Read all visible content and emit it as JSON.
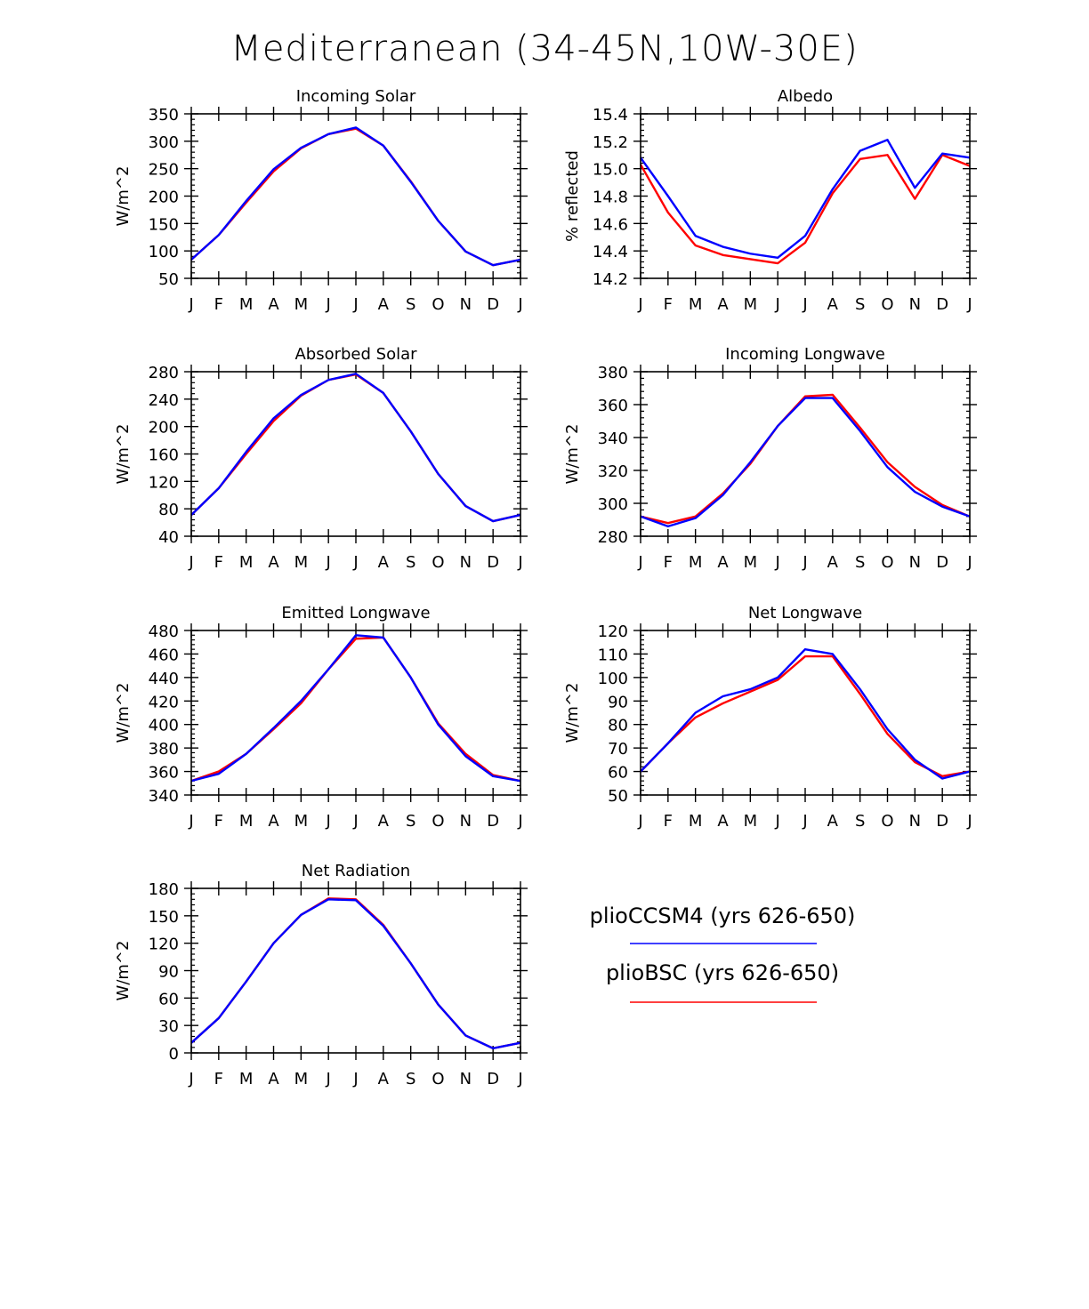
{
  "figure": {
    "title": "Mediterranean (34-45N,10W-30E)",
    "months": [
      "J",
      "F",
      "M",
      "A",
      "M",
      "J",
      "J",
      "A",
      "S",
      "O",
      "N",
      "D",
      "J"
    ]
  },
  "legend": {
    "entries": [
      {
        "label": "plioCCSM4 (yrs 626-650)",
        "color": "#0000ff"
      },
      {
        "label": "plioBSC (yrs 626-650)",
        "color": "#ff0000"
      }
    ]
  },
  "chart_data": [
    {
      "type": "line",
      "title": "Incoming Solar",
      "ylabel": "W/m^2",
      "ylim": [
        50,
        350
      ],
      "yticks": [
        50,
        100,
        150,
        200,
        250,
        300,
        350
      ],
      "ytick_labels": [
        "50",
        "100",
        "150",
        "200",
        "250",
        "300",
        "350"
      ],
      "series": [
        {
          "name": "plioCCSM4 (yrs 626-650)",
          "color": "#0000ff",
          "values": [
            84,
            129,
            191,
            249,
            288,
            313,
            325,
            292,
            226,
            155,
            99,
            74,
            84
          ]
        },
        {
          "name": "plioBSC (yrs 626-650)",
          "color": "#ff0000",
          "values": [
            84,
            129,
            188,
            245,
            287,
            313,
            323,
            292,
            227,
            155,
            99,
            74,
            84
          ]
        }
      ]
    },
    {
      "type": "line",
      "title": "Albedo",
      "ylabel": "% reflected",
      "ylim": [
        14.2,
        15.4
      ],
      "yticks": [
        14.2,
        14.4,
        14.6,
        14.8,
        15.0,
        15.2,
        15.4
      ],
      "ytick_labels": [
        "14.2",
        "14.4",
        "14.6",
        "14.8",
        "15.0",
        "15.2",
        "15.4"
      ],
      "series": [
        {
          "name": "plioCCSM4 (yrs 626-650)",
          "color": "#0000ff",
          "values": [
            15.08,
            14.8,
            14.51,
            14.43,
            14.38,
            14.35,
            14.51,
            14.85,
            15.13,
            15.21,
            14.86,
            15.11,
            15.08
          ]
        },
        {
          "name": "plioBSC (yrs 626-650)",
          "color": "#ff0000",
          "values": [
            15.03,
            14.68,
            14.44,
            14.37,
            14.34,
            14.31,
            14.46,
            14.82,
            15.07,
            15.1,
            14.78,
            15.1,
            15.02
          ]
        }
      ]
    },
    {
      "type": "line",
      "title": "Absorbed Solar",
      "ylabel": "W/m^2",
      "ylim": [
        40,
        280
      ],
      "yticks": [
        40,
        80,
        120,
        160,
        200,
        240,
        280
      ],
      "ytick_labels": [
        "40",
        "80",
        "120",
        "160",
        "200",
        "240",
        "280"
      ],
      "series": [
        {
          "name": "plioCCSM4 (yrs 626-650)",
          "color": "#0000ff",
          "values": [
            71,
            110,
            163,
            212,
            246,
            268,
            277,
            249,
            193,
            131,
            84,
            62,
            71
          ]
        },
        {
          "name": "plioBSC (yrs 626-650)",
          "color": "#ff0000",
          "values": [
            71,
            110,
            160,
            208,
            245,
            268,
            276,
            249,
            193,
            131,
            84,
            62,
            71
          ]
        }
      ]
    },
    {
      "type": "line",
      "title": "Incoming Longwave",
      "ylabel": "W/m^2",
      "ylim": [
        280,
        380
      ],
      "yticks": [
        280,
        300,
        320,
        340,
        360,
        380
      ],
      "ytick_labels": [
        "280",
        "300",
        "320",
        "340",
        "360",
        "380"
      ],
      "series": [
        {
          "name": "plioCCSM4 (yrs 626-650)",
          "color": "#0000ff",
          "values": [
            292,
            286,
            291,
            305,
            325,
            347,
            364,
            364,
            344,
            322,
            307,
            298,
            292
          ]
        },
        {
          "name": "plioBSC (yrs 626-650)",
          "color": "#ff0000",
          "values": [
            292,
            288,
            292,
            306,
            324,
            347,
            365,
            366,
            346,
            325,
            310,
            299,
            292
          ]
        }
      ]
    },
    {
      "type": "line",
      "title": "Emitted Longwave",
      "ylabel": "W/m^2",
      "ylim": [
        340,
        480
      ],
      "yticks": [
        340,
        360,
        380,
        400,
        420,
        440,
        460,
        480
      ],
      "ytick_labels": [
        "340",
        "360",
        "380",
        "400",
        "420",
        "440",
        "460",
        "480"
      ],
      "series": [
        {
          "name": "plioCCSM4 (yrs 626-650)",
          "color": "#0000ff",
          "values": [
            352,
            358,
            375,
            397,
            420,
            447,
            476,
            474,
            440,
            400,
            373,
            356,
            352
          ]
        },
        {
          "name": "plioBSC (yrs 626-650)",
          "color": "#ff0000",
          "values": [
            352,
            360,
            375,
            396,
            418,
            447,
            473,
            474,
            440,
            401,
            375,
            357,
            352
          ]
        }
      ]
    },
    {
      "type": "line",
      "title": "Net Longwave",
      "ylabel": "W/m^2",
      "ylim": [
        50,
        120
      ],
      "yticks": [
        50,
        60,
        70,
        80,
        90,
        100,
        110,
        120
      ],
      "ytick_labels": [
        "50",
        "60",
        "70",
        "80",
        "90",
        "100",
        "110",
        "120"
      ],
      "series": [
        {
          "name": "plioCCSM4 (yrs 626-650)",
          "color": "#0000ff",
          "values": [
            60,
            72,
            85,
            92,
            95,
            100,
            112,
            110,
            95,
            78,
            65,
            57,
            60
          ]
        },
        {
          "name": "plioBSC (yrs 626-650)",
          "color": "#ff0000",
          "values": [
            60,
            72,
            83,
            89,
            94,
            99,
            109,
            109,
            93,
            76,
            64,
            58,
            60
          ]
        }
      ]
    },
    {
      "type": "line",
      "title": "Net Radiation",
      "ylabel": "W/m^2",
      "ylim": [
        0,
        180
      ],
      "yticks": [
        0,
        30,
        60,
        90,
        120,
        150,
        180
      ],
      "ytick_labels": [
        "0",
        "30",
        "60",
        "90",
        "120",
        "150",
        "180"
      ],
      "series": [
        {
          "name": "plioCCSM4 (yrs 626-650)",
          "color": "#0000ff",
          "values": [
            11,
            38,
            78,
            120,
            151,
            168,
            167,
            139,
            98,
            53,
            19,
            5,
            11
          ]
        },
        {
          "name": "plioBSC (yrs 626-650)",
          "color": "#ff0000",
          "values": [
            11,
            38,
            78,
            120,
            151,
            169,
            168,
            140,
            98,
            53,
            19,
            5,
            11
          ]
        }
      ]
    }
  ]
}
